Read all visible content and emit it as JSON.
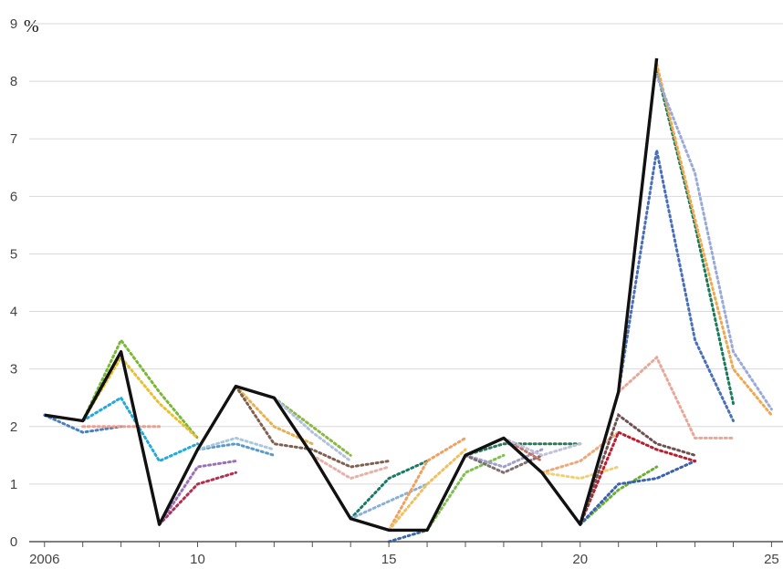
{
  "chart_data": {
    "type": "line",
    "unit_label": "%",
    "xlim": [
      2005.6,
      2025.3
    ],
    "ylim": [
      0,
      9
    ],
    "y_ticks": [
      0,
      1,
      2,
      3,
      4,
      5,
      6,
      7,
      8,
      9
    ],
    "x_ticks": [
      {
        "value": 2006,
        "label": "2006"
      },
      {
        "value": 2010,
        "label": "10"
      },
      {
        "value": 2015,
        "label": "15"
      },
      {
        "value": 2020,
        "label": "20"
      },
      {
        "value": 2025,
        "label": "25"
      }
    ],
    "grid": "horizontal",
    "actual": {
      "color": "#111111",
      "x": [
        2006,
        2007,
        2008,
        2009,
        2010,
        2011,
        2012,
        2013,
        2014,
        2015,
        2016,
        2017,
        2018,
        2019,
        2020,
        2021,
        2022
      ],
      "y": [
        2.2,
        2.1,
        3.3,
        0.3,
        1.6,
        2.7,
        2.5,
        1.5,
        0.4,
        0.2,
        0.2,
        1.5,
        1.8,
        1.2,
        0.3,
        2.6,
        8.4
      ]
    },
    "projections": [
      {
        "color": "#4a7fc1",
        "x": [
          2006,
          2007,
          2008
        ],
        "y": [
          2.2,
          1.9,
          2.0
        ]
      },
      {
        "color": "#e8a090",
        "x": [
          2007,
          2008,
          2009
        ],
        "y": [
          2.0,
          2.0,
          2.0
        ]
      },
      {
        "color": "#22aadd",
        "x": [
          2007,
          2008,
          2009,
          2010
        ],
        "y": [
          2.1,
          2.5,
          1.4,
          1.7
        ]
      },
      {
        "color": "#7ab836",
        "x": [
          2007,
          2008,
          2009,
          2010
        ],
        "y": [
          2.1,
          3.5,
          2.6,
          1.8
        ]
      },
      {
        "color": "#e8c030",
        "x": [
          2007,
          2008,
          2009,
          2010
        ],
        "y": [
          2.1,
          3.2,
          2.4,
          1.8
        ]
      },
      {
        "color": "#b03050",
        "x": [
          2009,
          2010,
          2011
        ],
        "y": [
          0.3,
          1.0,
          1.2
        ]
      },
      {
        "color": "#9a70b8",
        "x": [
          2009,
          2010,
          2011
        ],
        "y": [
          0.3,
          1.3,
          1.4
        ]
      },
      {
        "color": "#5a9ac8",
        "x": [
          2010,
          2011,
          2012
        ],
        "y": [
          1.6,
          1.7,
          1.5
        ]
      },
      {
        "color": "#a8c8e0",
        "x": [
          2010,
          2011,
          2012
        ],
        "y": [
          1.6,
          1.8,
          1.6
        ]
      },
      {
        "color": "#8ab840",
        "x": [
          2011,
          2012,
          2013,
          2014
        ],
        "y": [
          2.7,
          2.5,
          2.0,
          1.5
        ]
      },
      {
        "color": "#e8b050",
        "x": [
          2011,
          2012,
          2013
        ],
        "y": [
          2.7,
          2.0,
          1.7
        ]
      },
      {
        "color": "#806050",
        "x": [
          2011,
          2012,
          2013,
          2014,
          2015
        ],
        "y": [
          2.7,
          1.7,
          1.6,
          1.3,
          1.4
        ]
      },
      {
        "color": "#b0c0e0",
        "x": [
          2012,
          2013,
          2014
        ],
        "y": [
          2.5,
          1.9,
          1.4
        ]
      },
      {
        "color": "#e8b0a8",
        "x": [
          2013,
          2014,
          2015
        ],
        "y": [
          1.5,
          1.1,
          1.3
        ]
      },
      {
        "color": "#1a7a6a",
        "x": [
          2014,
          2015,
          2016
        ],
        "y": [
          0.4,
          1.1,
          1.4
        ]
      },
      {
        "color": "#8ab0d8",
        "x": [
          2014,
          2015,
          2016
        ],
        "y": [
          0.4,
          0.7,
          1.0
        ]
      },
      {
        "color": "#f0a060",
        "x": [
          2015,
          2016,
          2017
        ],
        "y": [
          0.2,
          1.4,
          1.8
        ]
      },
      {
        "color": "#f0c060",
        "x": [
          2015,
          2016,
          2017
        ],
        "y": [
          0.2,
          1.0,
          1.6
        ]
      },
      {
        "color": "#3a6aa8",
        "x": [
          2015,
          2016
        ],
        "y": [
          0.0,
          0.2
        ]
      },
      {
        "color": "#80c050",
        "x": [
          2016,
          2017,
          2018
        ],
        "y": [
          0.2,
          1.2,
          1.5
        ]
      },
      {
        "color": "#a0a0c8",
        "x": [
          2017,
          2018,
          2019
        ],
        "y": [
          1.5,
          1.3,
          1.6
        ]
      },
      {
        "color": "#2a7a5a",
        "x": [
          2017,
          2018,
          2019,
          2020
        ],
        "y": [
          1.5,
          1.7,
          1.7,
          1.7
        ]
      },
      {
        "color": "#807070",
        "x": [
          2017,
          2018,
          2019
        ],
        "y": [
          1.5,
          1.2,
          1.5
        ]
      },
      {
        "color": "#c87060",
        "x": [
          2018,
          2019
        ],
        "y": [
          1.8,
          1.4
        ]
      },
      {
        "color": "#c0c0dc",
        "x": [
          2018,
          2019,
          2020
        ],
        "y": [
          1.8,
          1.5,
          1.7
        ]
      },
      {
        "color": "#f0d070",
        "x": [
          2019,
          2020,
          2021
        ],
        "y": [
          1.2,
          1.1,
          1.3
        ]
      },
      {
        "color": "#f0a878",
        "x": [
          2019,
          2020,
          2021
        ],
        "y": [
          1.2,
          1.4,
          1.9
        ]
      },
      {
        "color": "#6ab030",
        "x": [
          2020,
          2021,
          2022
        ],
        "y": [
          0.3,
          0.9,
          1.3
        ]
      },
      {
        "color": "#3a60b0",
        "x": [
          2020,
          2021,
          2022,
          2023
        ],
        "y": [
          0.3,
          1.0,
          1.1,
          1.4
        ]
      },
      {
        "color": "#b82030",
        "x": [
          2020,
          2021,
          2022,
          2023
        ],
        "y": [
          0.3,
          1.9,
          1.6,
          1.4
        ]
      },
      {
        "color": "#705050",
        "x": [
          2020,
          2021,
          2022,
          2023
        ],
        "y": [
          0.3,
          2.2,
          1.7,
          1.5
        ]
      },
      {
        "color": "#e8a898",
        "x": [
          2021,
          2022,
          2023,
          2024
        ],
        "y": [
          2.6,
          3.2,
          1.8,
          1.8
        ]
      },
      {
        "color": "#4a70b8",
        "x": [
          2021,
          2022,
          2023,
          2024
        ],
        "y": [
          2.6,
          6.8,
          3.5,
          2.1
        ]
      },
      {
        "color": "#1a7a5a",
        "x": [
          2022,
          2023,
          2024
        ],
        "y": [
          8.2,
          5.5,
          2.4
        ]
      },
      {
        "color": "#f0a850",
        "x": [
          2022,
          2023,
          2024,
          2025
        ],
        "y": [
          8.3,
          5.6,
          3.0,
          2.2
        ]
      },
      {
        "color": "#9aaad8",
        "x": [
          2022,
          2023,
          2024,
          2025
        ],
        "y": [
          8.1,
          6.4,
          3.3,
          2.3
        ]
      }
    ]
  }
}
